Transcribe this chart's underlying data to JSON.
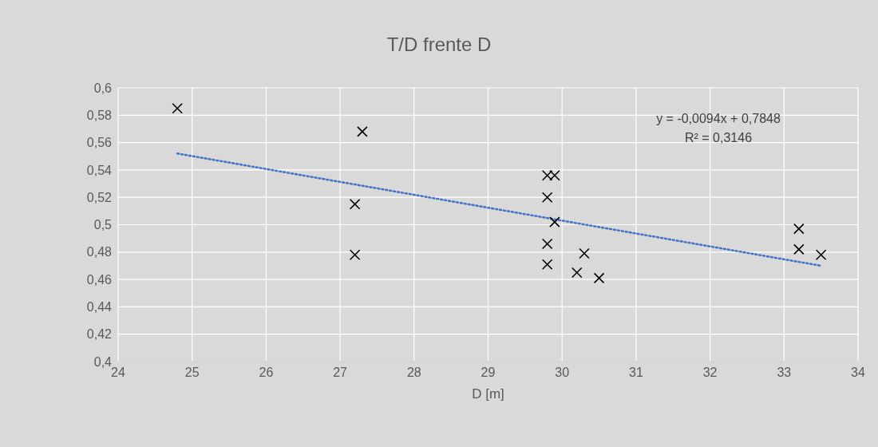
{
  "chart_data": {
    "type": "scatter",
    "title": "T/D frente D",
    "xlabel": "D [m]",
    "xlim": [
      24,
      34
    ],
    "xticks": [
      24,
      25,
      26,
      27,
      28,
      29,
      30,
      31,
      32,
      33,
      34
    ],
    "ylim": [
      0.4,
      0.6
    ],
    "yticks": [
      {
        "value": 0.4,
        "label": "0,4"
      },
      {
        "value": 0.42,
        "label": "0,42"
      },
      {
        "value": 0.44,
        "label": "0,44"
      },
      {
        "value": 0.46,
        "label": "0,46"
      },
      {
        "value": 0.48,
        "label": "0,48"
      },
      {
        "value": 0.5,
        "label": "0,5"
      },
      {
        "value": 0.52,
        "label": "0,52"
      },
      {
        "value": 0.54,
        "label": "0,54"
      },
      {
        "value": 0.56,
        "label": "0,56"
      },
      {
        "value": 0.58,
        "label": "0,58"
      },
      {
        "value": 0.6,
        "label": "0,6"
      }
    ],
    "grid": true,
    "annotations": [
      "y = -0,0094x + 0,7848",
      "R² = 0,3146"
    ],
    "series": [
      {
        "color": "#000000",
        "marker": "cross",
        "x": [
          24.8,
          27.3,
          27.2,
          27.2,
          29.8,
          29.9,
          29.8,
          29.9,
          29.8,
          29.8,
          30.3,
          30.2,
          30.5,
          33.2,
          33.2,
          33.5
        ],
        "values": [
          0.585,
          0.568,
          0.515,
          0.478,
          0.536,
          0.536,
          0.52,
          0.502,
          0.486,
          0.471,
          0.479,
          0.465,
          0.461,
          0.497,
          0.482,
          0.478
        ]
      },
      {
        "type": "line",
        "color": "#4472c4",
        "marker": "none",
        "line_style": "dotted",
        "x": [
          24.8,
          33.5
        ],
        "values": [
          0.552,
          0.47
        ]
      }
    ]
  }
}
